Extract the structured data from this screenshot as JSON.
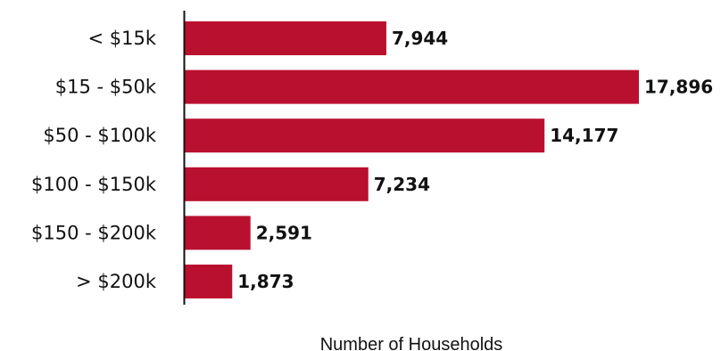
{
  "chart_data": {
    "type": "bar",
    "orientation": "horizontal",
    "categories": [
      "< $15k",
      "$15 - $50k",
      "$50 - $100k",
      "$100 - $150k",
      "$150 - $200k",
      "> $200k"
    ],
    "values": [
      7944,
      17896,
      14177,
      7234,
      2591,
      1873
    ],
    "value_labels": [
      "7,944",
      "17,896",
      "14,177",
      "7,234",
      "2,591",
      "1,873"
    ],
    "xlabel": "Number of Households",
    "xlim": [
      0,
      17896
    ],
    "bar_color": "#BA102F",
    "grid": false,
    "legend": "none"
  }
}
